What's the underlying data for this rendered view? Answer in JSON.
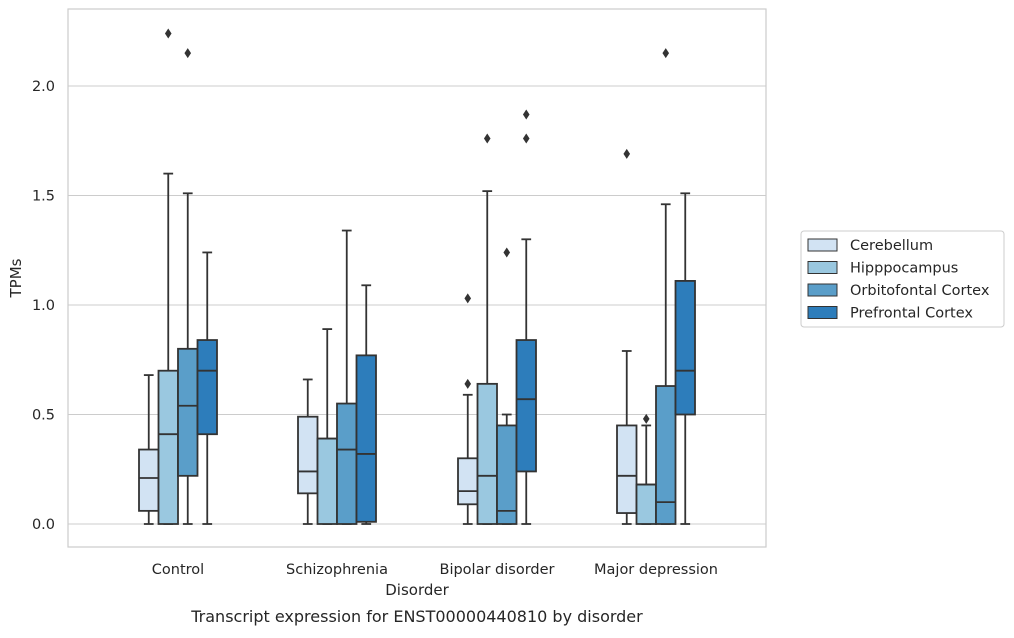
{
  "chart_data": {
    "type": "box",
    "title": "",
    "caption": "Transcript expression for ENST00000440810 by disorder",
    "xlabel": "Disorder",
    "ylabel": "TPMs",
    "ylim": [
      -0.11,
      2.35
    ],
    "yticks": [
      0.0,
      0.5,
      1.0,
      1.5,
      2.0
    ],
    "ytick_labels": [
      "0.0",
      "0.5",
      "1.0",
      "1.5",
      "2.0"
    ],
    "grid": "y",
    "legend_position": "right",
    "categories": [
      "Control",
      "Schizophrenia",
      "Bipolar disorder",
      "Major depression"
    ],
    "series": [
      {
        "name": "Cerebellum",
        "color": "#d2e3f3",
        "boxes": [
          {
            "whislo": 0.0,
            "q1": 0.06,
            "med": 0.21,
            "q3": 0.34,
            "whishi": 0.68,
            "fliers": []
          },
          {
            "whislo": 0.0,
            "q1": 0.14,
            "med": 0.24,
            "q3": 0.49,
            "whishi": 0.66,
            "fliers": []
          },
          {
            "whislo": 0.0,
            "q1": 0.09,
            "med": 0.15,
            "q3": 0.3,
            "whishi": 0.59,
            "fliers": [
              0.64,
              1.03
            ]
          },
          {
            "whislo": 0.0,
            "q1": 0.05,
            "med": 0.22,
            "q3": 0.45,
            "whishi": 0.79,
            "fliers": [
              1.69
            ]
          }
        ]
      },
      {
        "name": "Hipppocampus",
        "color": "#9ac8e0",
        "boxes": [
          {
            "whislo": 0.0,
            "q1": 0.0,
            "med": 0.41,
            "q3": 0.7,
            "whishi": 1.6,
            "fliers": [
              2.24
            ]
          },
          {
            "whislo": 0.0,
            "q1": 0.0,
            "med": 0.39,
            "q3": 0.39,
            "whishi": 0.89,
            "fliers": []
          },
          {
            "whislo": 0.0,
            "q1": 0.0,
            "med": 0.22,
            "q3": 0.64,
            "whishi": 1.52,
            "fliers": [
              1.76
            ]
          },
          {
            "whislo": 0.0,
            "q1": 0.0,
            "med": 0.18,
            "q3": 0.18,
            "whishi": 0.45,
            "fliers": [
              0.48
            ]
          }
        ]
      },
      {
        "name": "Orbitofontal Cortex",
        "color": "#5a9ec9",
        "boxes": [
          {
            "whislo": 0.0,
            "q1": 0.22,
            "med": 0.54,
            "q3": 0.8,
            "whishi": 1.51,
            "fliers": [
              2.15
            ]
          },
          {
            "whislo": 0.0,
            "q1": 0.0,
            "med": 0.34,
            "q3": 0.55,
            "whishi": 1.34,
            "fliers": []
          },
          {
            "whislo": 0.0,
            "q1": 0.0,
            "med": 0.06,
            "q3": 0.45,
            "whishi": 0.5,
            "fliers": [
              1.24
            ]
          },
          {
            "whislo": 0.0,
            "q1": 0.0,
            "med": 0.1,
            "q3": 0.63,
            "whishi": 1.46,
            "fliers": [
              2.15
            ]
          }
        ]
      },
      {
        "name": "Prefrontal Cortex",
        "color": "#2d7dbb",
        "boxes": [
          {
            "whislo": 0.0,
            "q1": 0.41,
            "med": 0.7,
            "q3": 0.84,
            "whishi": 1.24,
            "fliers": []
          },
          {
            "whislo": 0.0,
            "q1": 0.01,
            "med": 0.32,
            "q3": 0.77,
            "whishi": 1.09,
            "fliers": []
          },
          {
            "whislo": 0.0,
            "q1": 0.24,
            "med": 0.57,
            "q3": 0.84,
            "whishi": 1.3,
            "fliers": [
              1.76,
              1.87
            ]
          },
          {
            "whislo": 0.0,
            "q1": 0.5,
            "med": 0.7,
            "q3": 1.11,
            "whishi": 1.51,
            "fliers": []
          }
        ]
      }
    ]
  }
}
